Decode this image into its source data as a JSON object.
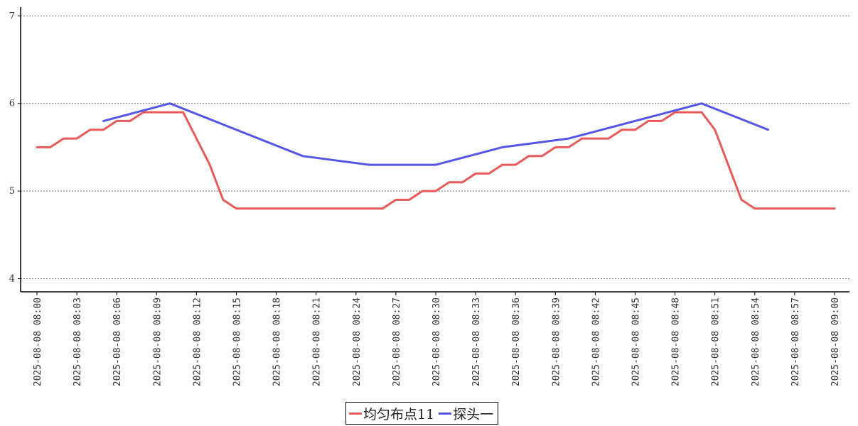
{
  "chart_data": {
    "type": "line",
    "x_ticks": [
      "2025-08-08 08:00",
      "2025-08-08 08:03",
      "2025-08-08 08:06",
      "2025-08-08 08:09",
      "2025-08-08 08:12",
      "2025-08-08 08:15",
      "2025-08-08 08:18",
      "2025-08-08 08:21",
      "2025-08-08 08:24",
      "2025-08-08 08:27",
      "2025-08-08 08:30",
      "2025-08-08 08:33",
      "2025-08-08 08:36",
      "2025-08-08 08:39",
      "2025-08-08 08:42",
      "2025-08-08 08:45",
      "2025-08-08 08:48",
      "2025-08-08 08:51",
      "2025-08-08 08:54",
      "2025-08-08 08:57",
      "2025-08-08 09:00"
    ],
    "y_ticks": [
      "4",
      "5",
      "6",
      "7"
    ],
    "ylim": [
      3.85,
      7.1
    ],
    "grid": "horizontal dashed",
    "legend_position": "bottom-center",
    "series": [
      {
        "name": "均匀布点11",
        "color": "#e85a5a",
        "points": [
          [
            "2025-08-08 08:00",
            5.5
          ],
          [
            "2025-08-08 08:01",
            5.5
          ],
          [
            "2025-08-08 08:02",
            5.6
          ],
          [
            "2025-08-08 08:03",
            5.6
          ],
          [
            "2025-08-08 08:04",
            5.7
          ],
          [
            "2025-08-08 08:05",
            5.7
          ],
          [
            "2025-08-08 08:06",
            5.8
          ],
          [
            "2025-08-08 08:07",
            5.8
          ],
          [
            "2025-08-08 08:08",
            5.9
          ],
          [
            "2025-08-08 08:09",
            5.9
          ],
          [
            "2025-08-08 08:10",
            5.9
          ],
          [
            "2025-08-08 08:11",
            5.9
          ],
          [
            "2025-08-08 08:13",
            5.3
          ],
          [
            "2025-08-08 08:14",
            4.9
          ],
          [
            "2025-08-08 08:15",
            4.8
          ],
          [
            "2025-08-08 08:16",
            4.8
          ],
          [
            "2025-08-08 08:17",
            4.8
          ],
          [
            "2025-08-08 08:18",
            4.8
          ],
          [
            "2025-08-08 08:19",
            4.8
          ],
          [
            "2025-08-08 08:20",
            4.8
          ],
          [
            "2025-08-08 08:21",
            4.8
          ],
          [
            "2025-08-08 08:22",
            4.8
          ],
          [
            "2025-08-08 08:23",
            4.8
          ],
          [
            "2025-08-08 08:24",
            4.8
          ],
          [
            "2025-08-08 08:25",
            4.8
          ],
          [
            "2025-08-08 08:26",
            4.8
          ],
          [
            "2025-08-08 08:27",
            4.9
          ],
          [
            "2025-08-08 08:28",
            4.9
          ],
          [
            "2025-08-08 08:29",
            5.0
          ],
          [
            "2025-08-08 08:30",
            5.0
          ],
          [
            "2025-08-08 08:31",
            5.1
          ],
          [
            "2025-08-08 08:32",
            5.1
          ],
          [
            "2025-08-08 08:33",
            5.2
          ],
          [
            "2025-08-08 08:34",
            5.2
          ],
          [
            "2025-08-08 08:35",
            5.3
          ],
          [
            "2025-08-08 08:36",
            5.3
          ],
          [
            "2025-08-08 08:37",
            5.4
          ],
          [
            "2025-08-08 08:38",
            5.4
          ],
          [
            "2025-08-08 08:39",
            5.5
          ],
          [
            "2025-08-08 08:40",
            5.5
          ],
          [
            "2025-08-08 08:41",
            5.6
          ],
          [
            "2025-08-08 08:42",
            5.6
          ],
          [
            "2025-08-08 08:43",
            5.6
          ],
          [
            "2025-08-08 08:44",
            5.7
          ],
          [
            "2025-08-08 08:45",
            5.7
          ],
          [
            "2025-08-08 08:46",
            5.8
          ],
          [
            "2025-08-08 08:47",
            5.8
          ],
          [
            "2025-08-08 08:48",
            5.9
          ],
          [
            "2025-08-08 08:49",
            5.9
          ],
          [
            "2025-08-08 08:50",
            5.9
          ],
          [
            "2025-08-08 08:51",
            5.7
          ],
          [
            "2025-08-08 08:53",
            4.9
          ],
          [
            "2025-08-08 08:54",
            4.8
          ],
          [
            "2025-08-08 08:55",
            4.8
          ],
          [
            "2025-08-08 08:56",
            4.8
          ],
          [
            "2025-08-08 08:57",
            4.8
          ],
          [
            "2025-08-08 08:58",
            4.8
          ],
          [
            "2025-08-08 08:59",
            4.8
          ],
          [
            "2025-08-08 09:00",
            4.8
          ]
        ]
      },
      {
        "name": "探头一",
        "color": "#5555e6",
        "points": [
          [
            "2025-08-08 08:05",
            5.8
          ],
          [
            "2025-08-08 08:10",
            6.0
          ],
          [
            "2025-08-08 08:20",
            5.4
          ],
          [
            "2025-08-08 08:25",
            5.3
          ],
          [
            "2025-08-08 08:30",
            5.3
          ],
          [
            "2025-08-08 08:35",
            5.5
          ],
          [
            "2025-08-08 08:40",
            5.6
          ],
          [
            "2025-08-08 08:50",
            6.0
          ],
          [
            "2025-08-08 08:55",
            5.7
          ]
        ]
      }
    ]
  }
}
